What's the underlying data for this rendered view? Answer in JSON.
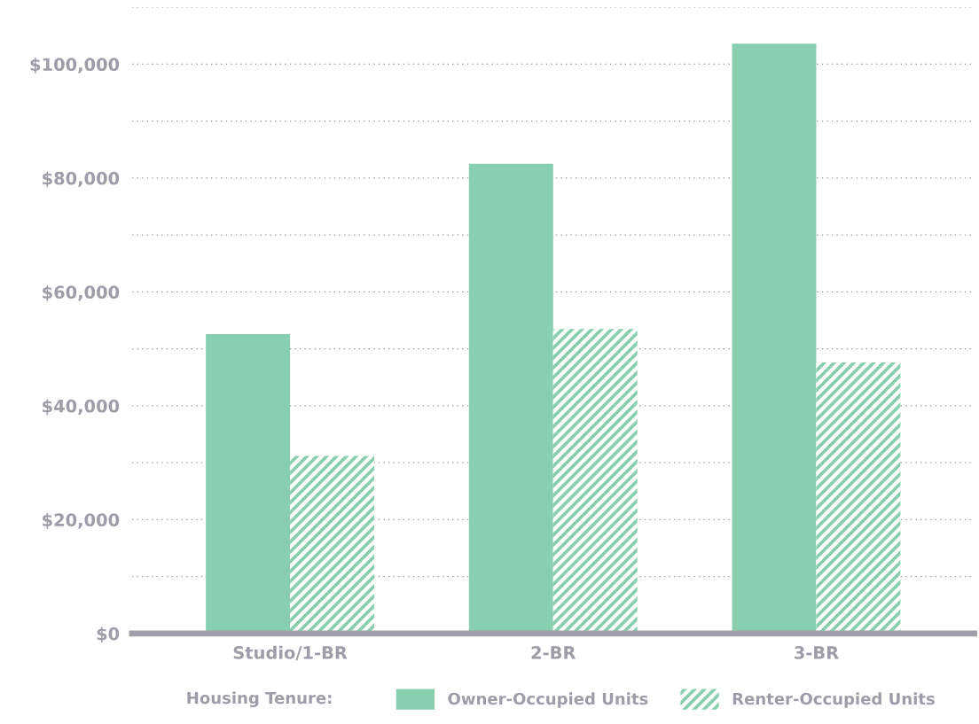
{
  "chart_data": {
    "type": "bar",
    "categories": [
      "Studio/1-BR",
      "2-BR",
      "3-BR"
    ],
    "series": [
      {
        "name": "Owner-Occupied Units",
        "color": "#88cfb0",
        "values": [
          52600,
          82500,
          103600
        ]
      },
      {
        "name": "Renter-Occupied Units",
        "color": "#88cfb0",
        "values": [
          31200,
          53500,
          47600
        ]
      }
    ],
    "ylim": [
      0,
      110000
    ],
    "yticks": [
      {
        "value": 0,
        "label": "$0"
      },
      {
        "value": 10000,
        "label": null
      },
      {
        "value": 20000,
        "label": "$20,000"
      },
      {
        "value": 30000,
        "label": null
      },
      {
        "value": 40000,
        "label": "$40,000"
      },
      {
        "value": 50000,
        "label": null
      },
      {
        "value": 60000,
        "label": "$60,000"
      },
      {
        "value": 70000,
        "label": null
      },
      {
        "value": 80000,
        "label": "$80,000"
      },
      {
        "value": 90000,
        "label": null
      },
      {
        "value": 100000,
        "label": "$100,000"
      },
      {
        "value": 110000,
        "label": null
      }
    ],
    "grid": "y",
    "legend": "bottom",
    "legend_title": "Housing Tenure:"
  }
}
